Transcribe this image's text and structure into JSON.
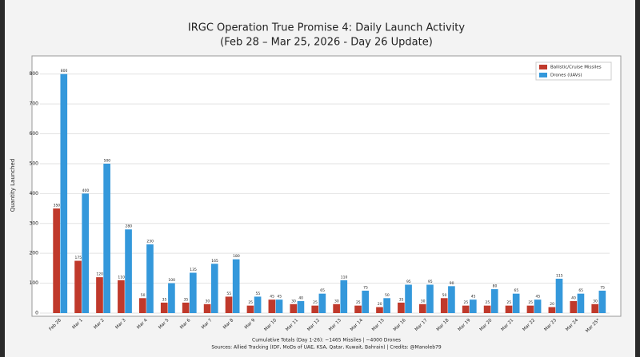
{
  "chart_data": {
    "type": "grouped-bar",
    "title": "IRGC Operation True Promise 4: Daily Launch Activity",
    "subtitle": "(Feb 28 – Mar 25, 2026 - Day 26 Update)",
    "y_label": "Quantity Launched",
    "categories": [
      "Feb 28",
      "Mar 1",
      "Mar 2",
      "Mar 3",
      "Mar 4",
      "Mar 5",
      "Mar 6",
      "Mar 7",
      "Mar 8",
      "Mar 9",
      "Mar 10",
      "Mar 11",
      "Mar 12",
      "Mar 13",
      "Mar 14",
      "Mar 15",
      "Mar 16",
      "Mar 17",
      "Mar 18",
      "Mar 19",
      "Mar 20",
      "Mar 21",
      "Mar 22",
      "Mar 23",
      "Mar 24",
      "Mar 25*"
    ],
    "series": [
      {
        "name": "Ballistic/Cruise Missiles",
        "color": "#c0392b",
        "values": [
          350,
          175,
          120,
          110,
          50,
          35,
          35,
          30,
          55,
          25,
          45,
          30,
          25,
          30,
          25,
          20,
          35,
          30,
          50,
          25,
          25,
          25,
          25,
          20,
          40,
          30
        ]
      },
      {
        "name": "Drones (UAVs)",
        "color": "#3498db",
        "values": [
          800,
          400,
          500,
          280,
          230,
          100,
          135,
          165,
          180,
          55,
          45,
          40,
          65,
          110,
          75,
          50,
          95,
          95,
          90,
          45,
          80,
          65,
          45,
          115,
          65,
          75
        ]
      }
    ],
    "ylim": [
      0,
      850
    ],
    "yticks": [
      0,
      100,
      200,
      300,
      400,
      500,
      600,
      700,
      800
    ],
    "grid": true,
    "legend": "upper right",
    "footnotes": [
      "Cumulative Totals (Day 1-26): ~1465 Missiles | ~4000 Drones",
      "Sources: Allied Tracking (IDF, MoDs of UAE, KSA, Qatar, Kuwait, Bahrain) | Credits: @Manoleb79"
    ]
  }
}
